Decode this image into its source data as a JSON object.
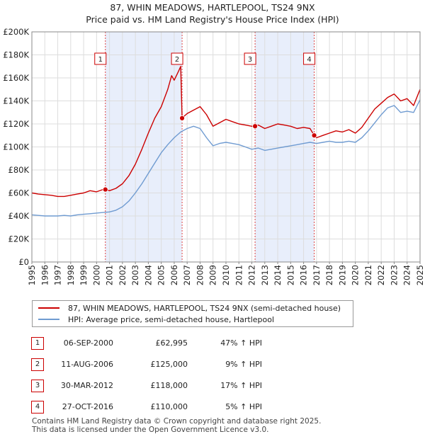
{
  "title_line1": "87, WHIN MEADOWS, HARTLEPOOL, TS24 9NX",
  "title_line2": "Price paid vs. HM Land Registry's House Price Index (HPI)",
  "colors": {
    "property_line": "#cc0000",
    "hpi_line": "#6f9bd1",
    "shade": "#e8eefb",
    "marker_border": "#cc0000",
    "grid": "#dddddd"
  },
  "chart_data": {
    "type": "line",
    "title": "Price paid vs. HM Land Registry's House Price Index (HPI)",
    "xlim": [
      1995,
      2025
    ],
    "ylim": [
      0,
      200000
    ],
    "y_ticks": [
      0,
      20000,
      40000,
      60000,
      80000,
      100000,
      120000,
      140000,
      160000,
      180000,
      200000
    ],
    "y_tick_labels": [
      "£0",
      "£20K",
      "£40K",
      "£60K",
      "£80K",
      "£100K",
      "£120K",
      "£140K",
      "£160K",
      "£180K",
      "£200K"
    ],
    "x_ticks": [
      1995,
      1996,
      1997,
      1998,
      1999,
      2000,
      2001,
      2002,
      2003,
      2004,
      2005,
      2006,
      2007,
      2008,
      2009,
      2010,
      2011,
      2012,
      2013,
      2014,
      2015,
      2016,
      2017,
      2018,
      2019,
      2020,
      2021,
      2022,
      2023,
      2024,
      2025
    ],
    "x_tick_labels": [
      "1995",
      "1996",
      "1997",
      "1998",
      "1999",
      "2000",
      "2001",
      "2002",
      "2003",
      "2004",
      "2005",
      "2006",
      "2007",
      "2008",
      "2009",
      "2010",
      "2011",
      "2012",
      "2013",
      "2014",
      "2015",
      "2016",
      "2017",
      "2018",
      "2019",
      "2020",
      "2021",
      "2022",
      "2023",
      "2024",
      "2025"
    ],
    "grid": true,
    "shaded_ranges": [
      [
        2000.68,
        2006.61
      ],
      [
        2012.25,
        2016.82
      ]
    ],
    "series": [
      {
        "name": "87, WHIN MEADOWS, HARTLEPOOL, TS24 9NX (semi-detached house)",
        "color": "#cc0000",
        "x": [
          1995.0,
          1995.5,
          1996.0,
          1996.5,
          1997.0,
          1997.5,
          1998.0,
          1998.5,
          1999.0,
          1999.5,
          2000.0,
          2000.5,
          2000.68,
          2001.0,
          2001.5,
          2002.0,
          2002.5,
          2003.0,
          2003.5,
          2004.0,
          2004.5,
          2005.0,
          2005.5,
          2005.8,
          2006.0,
          2006.3,
          2006.5,
          2006.61,
          2006.8,
          2007.0,
          2007.5,
          2008.0,
          2008.5,
          2009.0,
          2009.5,
          2010.0,
          2010.5,
          2011.0,
          2011.5,
          2012.0,
          2012.25,
          2012.5,
          2013.0,
          2013.5,
          2014.0,
          2014.5,
          2015.0,
          2015.5,
          2016.0,
          2016.5,
          2016.82,
          2017.0,
          2017.5,
          2018.0,
          2018.5,
          2019.0,
          2019.5,
          2020.0,
          2020.5,
          2021.0,
          2021.5,
          2022.0,
          2022.5,
          2023.0,
          2023.5,
          2024.0,
          2024.5,
          2025.0
        ],
        "values": [
          60000,
          59000,
          58500,
          58000,
          57000,
          57000,
          58000,
          59000,
          60000,
          62000,
          61000,
          63000,
          62995,
          62000,
          64000,
          68000,
          75000,
          85000,
          98000,
          112000,
          125000,
          135000,
          150000,
          162000,
          158000,
          165000,
          170000,
          125000,
          127000,
          129000,
          132000,
          135000,
          128000,
          118000,
          121000,
          124000,
          122000,
          120000,
          119000,
          118000,
          118000,
          119000,
          116000,
          118000,
          120000,
          119000,
          118000,
          116000,
          117000,
          116000,
          110000,
          108000,
          110000,
          112000,
          114000,
          113000,
          115000,
          112000,
          117000,
          125000,
          133000,
          138000,
          143000,
          146000,
          140000,
          142000,
          136000,
          150000
        ]
      },
      {
        "name": "HPI: Average price, semi-detached house, Hartlepool",
        "color": "#6f9bd1",
        "x": [
          1995.0,
          1995.5,
          1996.0,
          1996.5,
          1997.0,
          1997.5,
          1998.0,
          1998.5,
          1999.0,
          1999.5,
          2000.0,
          2000.5,
          2001.0,
          2001.5,
          2002.0,
          2002.5,
          2003.0,
          2003.5,
          2004.0,
          2004.5,
          2005.0,
          2005.5,
          2006.0,
          2006.5,
          2007.0,
          2007.5,
          2008.0,
          2008.5,
          2009.0,
          2009.5,
          2010.0,
          2010.5,
          2011.0,
          2011.5,
          2012.0,
          2012.5,
          2013.0,
          2013.5,
          2014.0,
          2014.5,
          2015.0,
          2015.5,
          2016.0,
          2016.5,
          2017.0,
          2017.5,
          2018.0,
          2018.5,
          2019.0,
          2019.5,
          2020.0,
          2020.5,
          2021.0,
          2021.5,
          2022.0,
          2022.5,
          2023.0,
          2023.5,
          2024.0,
          2024.5,
          2025.0
        ],
        "values": [
          41000,
          40500,
          40000,
          40000,
          40000,
          40500,
          40000,
          41000,
          41500,
          42000,
          42500,
          43000,
          43500,
          45000,
          48000,
          53000,
          60000,
          68000,
          77000,
          86000,
          95000,
          102000,
          108000,
          113000,
          116000,
          118000,
          116000,
          108000,
          101000,
          103000,
          104000,
          103000,
          102000,
          100000,
          98000,
          99000,
          97000,
          98000,
          99000,
          100000,
          101000,
          102000,
          103000,
          104000,
          103000,
          104000,
          105000,
          104000,
          104000,
          105000,
          104000,
          108000,
          114000,
          121000,
          128000,
          134000,
          136000,
          130000,
          131000,
          130000,
          141000
        ]
      }
    ],
    "sales": [
      {
        "n": "1",
        "date": "06-SEP-2000",
        "x": 2000.68,
        "price": 62995
      },
      {
        "n": "2",
        "date": "11-AUG-2006",
        "x": 2006.61,
        "price": 125000
      },
      {
        "n": "3",
        "date": "30-MAR-2012",
        "x": 2012.25,
        "price": 118000
      },
      {
        "n": "4",
        "date": "27-OCT-2016",
        "x": 2016.82,
        "price": 110000
      }
    ]
  },
  "legend": {
    "property": "87, WHIN MEADOWS, HARTLEPOOL, TS24 9NX (semi-detached house)",
    "hpi": "HPI: Average price, semi-detached house, Hartlepool"
  },
  "sales_table": [
    {
      "n": "1",
      "date": "06-SEP-2000",
      "price": "£62,995",
      "hpi": "47% ↑ HPI"
    },
    {
      "n": "2",
      "date": "11-AUG-2006",
      "price": "£125,000",
      "hpi": "9% ↑ HPI"
    },
    {
      "n": "3",
      "date": "30-MAR-2012",
      "price": "£118,000",
      "hpi": "17% ↑ HPI"
    },
    {
      "n": "4",
      "date": "27-OCT-2016",
      "price": "£110,000",
      "hpi": "5% ↑ HPI"
    }
  ],
  "footer": {
    "line1": "Contains HM Land Registry data © Crown copyright and database right 2025.",
    "line2": "This data is licensed under the Open Government Licence v3.0."
  }
}
